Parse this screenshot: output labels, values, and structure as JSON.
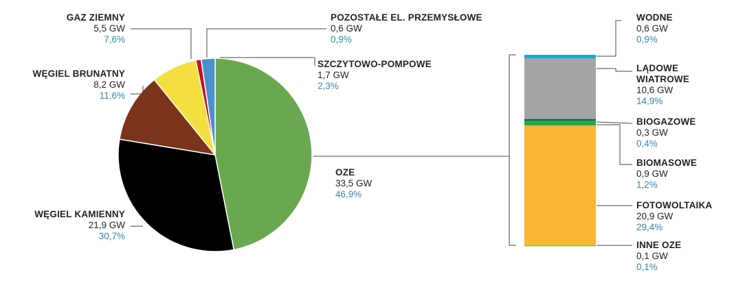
{
  "chart_data": [
    {
      "type": "pie",
      "slices": [
        {
          "label": "OZE",
          "gw": "33,5 GW",
          "pct_label": "46,9%",
          "value": 46.9,
          "color": "#6aa84f"
        },
        {
          "label": "WĘGIEL KAMIENNY",
          "gw": "21,9 GW",
          "pct_label": "30,7%",
          "value": 30.7,
          "color": "#000000"
        },
        {
          "label": "WĘGIEL BRUNATNY",
          "gw": "8,2 GW",
          "pct_label": "11,6%",
          "value": 11.6,
          "color": "#7b341b"
        },
        {
          "label": "GAZ ZIEMNY",
          "gw": "5,5 GW",
          "pct_label": "7,6%",
          "value": 7.6,
          "color": "#f3df3f"
        },
        {
          "label": "POZOSTAŁE EL. PRZEMYSŁOWE",
          "gw": "0,6 GW",
          "pct_label": "0,9%",
          "value": 0.9,
          "color": "#c0141b"
        },
        {
          "label": "SZCZYTOWO-POMPOWE",
          "gw": "1,7 GW",
          "pct_label": "2,3%",
          "value": 2.3,
          "color": "#4a8fcf"
        }
      ]
    },
    {
      "type": "bar",
      "stacked": true,
      "breakdown_of": "OZE",
      "segments": [
        {
          "label": "WODNE",
          "gw": "0,6 GW",
          "pct_label": "0,9%",
          "value": 0.9,
          "color": "#1ea5d4"
        },
        {
          "label": "LĄDOWE WIATROWE",
          "label_lines": [
            "LĄDOWE",
            "WIATROWE"
          ],
          "gw": "10,6 GW",
          "pct_label": "14,9%",
          "value": 14.9,
          "color": "#a4a4a4"
        },
        {
          "label": "BIOGAZOWE",
          "gw": "0,3 GW",
          "pct_label": "0,4%",
          "value": 0.4,
          "color": "#1f5a4f"
        },
        {
          "label": "BIOMASOWE",
          "gw": "0,9 GW",
          "pct_label": "1,2%",
          "value": 1.2,
          "color": "#22a84a"
        },
        {
          "label": "FOTOWOLTAIKA",
          "gw": "20,9 GW",
          "pct_label": "29,4%",
          "value": 29.4,
          "color": "#fbb434"
        },
        {
          "label": "INNE OZE",
          "gw": "0,1 GW",
          "pct_label": "0,1%",
          "value": 0.1,
          "color": "#8dc63f"
        }
      ]
    }
  ]
}
